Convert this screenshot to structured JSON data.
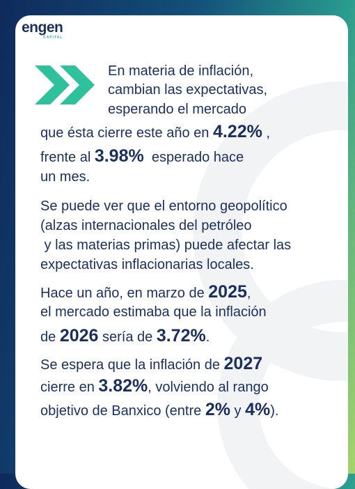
{
  "logo": {
    "name": "engen",
    "tagline": "CAPITAL"
  },
  "paragraphs": [
    {
      "lines": [
        [
          {
            "text": "En materia de inflación,"
          }
        ],
        [
          {
            "text": "cambian las expectativas,"
          }
        ],
        [
          {
            "text": "esperando el mercado"
          }
        ],
        [
          {
            "text": "que ésta cierre este año en "
          },
          {
            "text": "4.22%",
            "strong": true
          },
          {
            "text": " ,"
          }
        ],
        [
          {
            "text": "frente al "
          },
          {
            "text": "3.98%",
            "strong": true
          },
          {
            "text": "  esperado hace"
          }
        ],
        [
          {
            "text": "un mes."
          }
        ]
      ]
    },
    {
      "lines": [
        [
          {
            "text": "Se puede ver que el entorno geopolítico"
          }
        ],
        [
          {
            "text": "(alzas internacionales del petróleo"
          }
        ],
        [
          {
            "text": " y las materias primas) puede afectar las"
          }
        ],
        [
          {
            "text": "expectativas inflacionarias locales."
          }
        ]
      ]
    },
    {
      "lines": [
        [
          {
            "text": "Hace un año, en marzo de "
          },
          {
            "text": "2025",
            "strong": true
          },
          {
            "text": ","
          }
        ],
        [
          {
            "text": "el mercado estimaba que la inflación"
          }
        ],
        [
          {
            "text": "de "
          },
          {
            "text": "2026",
            "strong": true
          },
          {
            "text": " sería de "
          },
          {
            "text": "3.72%",
            "strong": true
          },
          {
            "text": "."
          }
        ]
      ]
    },
    {
      "lines": [
        [
          {
            "text": "Se espera que la inflación de "
          },
          {
            "text": "2027",
            "strong": true
          }
        ],
        [
          {
            "text": "cierre en "
          },
          {
            "text": "3.82%",
            "strong": true
          },
          {
            "text": ", volviendo al rango"
          }
        ],
        [
          {
            "text": "objetivo de Banxico (entre "
          },
          {
            "text": "2%",
            "strong": true
          },
          {
            "text": " y "
          },
          {
            "text": "4%",
            "strong": true
          },
          {
            "text": ")."
          }
        ]
      ]
    }
  ]
}
